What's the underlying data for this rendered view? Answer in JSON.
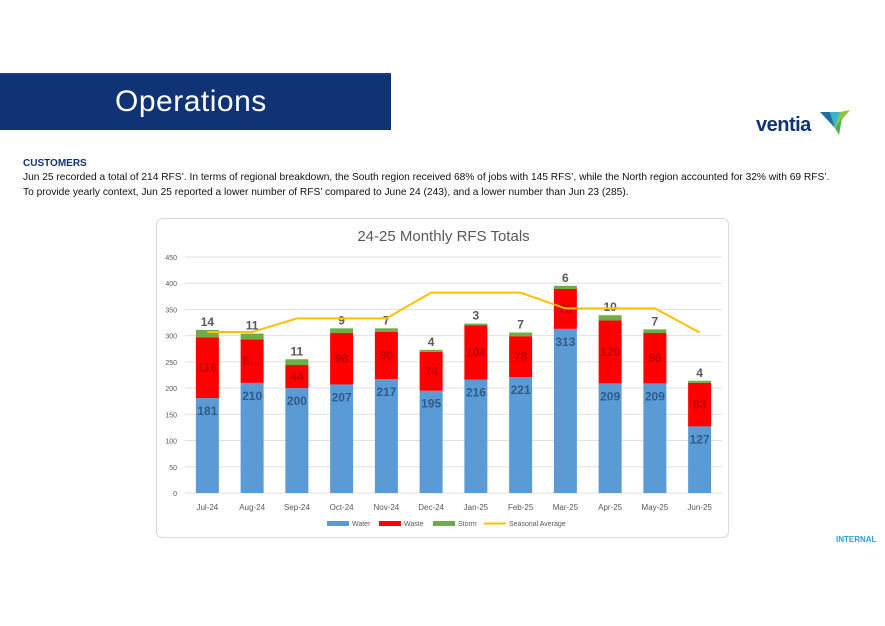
{
  "header": {
    "title": "Operations"
  },
  "logo": {
    "text": "ventia"
  },
  "section": {
    "heading": "CUSTOMERS",
    "summary": "Jun 25 recorded a total of 214 RFS’.  In terms of regional breakdown, the South region received 68% of jobs with 145 RFS’, while the North region accounted for 32% with 69 RFS’. To provide yearly context, Jun 25 reported a lower number of RFS’ compared to June 24 (243), and a lower number than Jun 23 (285)."
  },
  "footer": {
    "classification": "INTERNAL"
  },
  "colors": {
    "water": "#5b9bd5",
    "waste": "#ff0000",
    "storm": "#70ad47",
    "seasonal": "#ffc000",
    "banner": "#0f3374"
  },
  "chart_data": {
    "type": "bar",
    "title": "24-25 Monthly RFS Totals",
    "categories": [
      "Jul-24",
      "Aug-24",
      "Sep-24",
      "Oct-24",
      "Nov-24",
      "Dec-24",
      "Jan-25",
      "Feb-25",
      "Mar-25",
      "Apr-25",
      "May-25",
      "Jun-25"
    ],
    "series": [
      {
        "name": "Water",
        "values": [
          181,
          210,
          200,
          207,
          217,
          195,
          216,
          221,
          313,
          209,
          209,
          127
        ],
        "labels": [
          "181",
          "210",
          "200",
          "207",
          "217",
          "195",
          "216",
          "221",
          "313",
          "209",
          "209",
          "127"
        ]
      },
      {
        "name": "Waste",
        "values": [
          116,
          83,
          44,
          98,
          90,
          74,
          104,
          78,
          76,
          120,
          96,
          83
        ],
        "labels": [
          "116",
          "8…",
          "44",
          "98",
          "90",
          "74",
          "104",
          "78",
          "76",
          "120",
          "96",
          "83"
        ]
      },
      {
        "name": "Storm",
        "values": [
          14,
          11,
          11,
          9,
          7,
          4,
          3,
          7,
          6,
          10,
          7,
          4
        ],
        "labels": [
          "14",
          "11",
          "11",
          "9",
          "7",
          "4",
          "3",
          "7",
          "6",
          "10",
          "7",
          "4"
        ]
      },
      {
        "name": "Seasonal Average",
        "type": "line",
        "values": [
          307,
          307,
          333,
          333,
          333,
          382,
          382,
          382,
          352,
          352,
          352,
          306
        ]
      }
    ],
    "ylim": [
      0,
      450
    ],
    "yticks": [
      0,
      50,
      100,
      150,
      200,
      250,
      300,
      350,
      400,
      450
    ],
    "stacked": true,
    "grid": true,
    "legend_position": "bottom"
  }
}
